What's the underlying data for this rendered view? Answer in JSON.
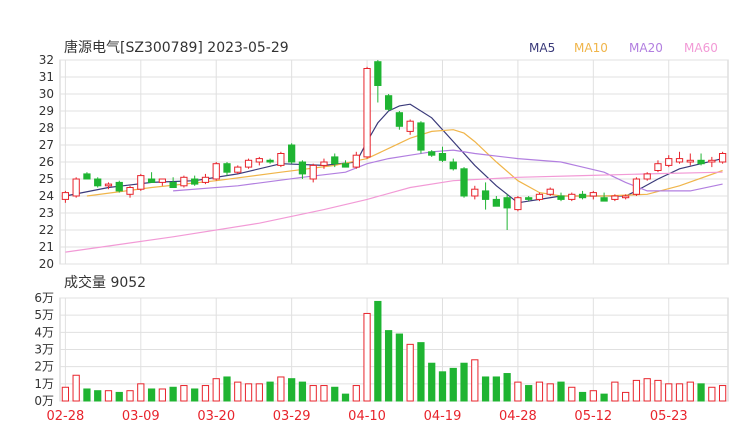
{
  "header": {
    "title": "唐源电气[SZ300789] 2023-05-29",
    "legend": [
      {
        "name": "MA5",
        "color": "#3a3a7a"
      },
      {
        "name": "MA10",
        "color": "#f0b54a"
      },
      {
        "name": "MA20",
        "color": "#b27fe0"
      },
      {
        "name": "MA60",
        "color": "#f29ad6"
      }
    ]
  },
  "colors": {
    "up": "#e8242c",
    "down": "#1fb432",
    "grid": "#e0e0e0"
  },
  "chart_data": [
    {
      "type": "candlestick",
      "title": "唐源电气[SZ300789] 2023-05-29",
      "ylim": [
        20,
        32
      ],
      "yticks": [
        "20",
        "21",
        "22",
        "23",
        "24",
        "25",
        "26",
        "27",
        "28",
        "29",
        "30",
        "31",
        "32"
      ],
      "x_labels": [
        {
          "label": "02-28",
          "index": 0
        },
        {
          "label": "03-09",
          "index": 7
        },
        {
          "label": "03-20",
          "index": 14
        },
        {
          "label": "03-29",
          "index": 21
        },
        {
          "label": "04-10",
          "index": 28
        },
        {
          "label": "04-19",
          "index": 35
        },
        {
          "label": "04-28",
          "index": 42
        },
        {
          "label": "05-12",
          "index": 49
        },
        {
          "label": "05-23",
          "index": 56
        }
      ],
      "ohlc": [
        [
          23.8,
          24.3,
          23.6,
          24.2
        ],
        [
          24.0,
          25.1,
          23.9,
          25.0
        ],
        [
          25.3,
          25.4,
          25.0,
          25.0
        ],
        [
          25.0,
          25.1,
          24.5,
          24.6
        ],
        [
          24.6,
          24.8,
          24.4,
          24.7
        ],
        [
          24.8,
          24.9,
          24.2,
          24.3
        ],
        [
          24.1,
          24.6,
          23.9,
          24.5
        ],
        [
          24.4,
          25.3,
          24.3,
          25.2
        ],
        [
          25.0,
          25.4,
          24.8,
          24.8
        ],
        [
          24.8,
          25.0,
          24.6,
          25.0
        ],
        [
          24.8,
          25.1,
          24.5,
          24.5
        ],
        [
          24.6,
          25.2,
          24.5,
          25.1
        ],
        [
          25.0,
          25.2,
          24.6,
          24.7
        ],
        [
          24.8,
          25.3,
          24.7,
          25.1
        ],
        [
          25.0,
          26.0,
          24.9,
          25.9
        ],
        [
          25.9,
          26.0,
          25.2,
          25.4
        ],
        [
          25.4,
          25.8,
          25.3,
          25.7
        ],
        [
          25.7,
          26.2,
          25.6,
          26.1
        ],
        [
          26.0,
          26.3,
          25.8,
          26.2
        ],
        [
          26.1,
          26.2,
          25.9,
          26.0
        ],
        [
          25.8,
          26.6,
          25.7,
          26.5
        ],
        [
          27.0,
          27.1,
          25.9,
          26.0
        ],
        [
          26.0,
          26.1,
          25.0,
          25.3
        ],
        [
          25.0,
          25.9,
          24.8,
          25.8
        ],
        [
          25.8,
          26.2,
          25.6,
          26.0
        ],
        [
          26.3,
          26.5,
          25.7,
          25.9
        ],
        [
          25.9,
          26.1,
          25.7,
          25.7
        ],
        [
          25.7,
          26.6,
          25.6,
          26.4
        ],
        [
          26.3,
          31.6,
          26.2,
          31.5
        ],
        [
          31.9,
          32.0,
          29.5,
          30.5
        ],
        [
          29.9,
          30.0,
          29.0,
          29.1
        ],
        [
          28.9,
          29.0,
          27.9,
          28.1
        ],
        [
          27.8,
          28.5,
          27.6,
          28.4
        ],
        [
          28.3,
          28.4,
          26.5,
          26.7
        ],
        [
          26.6,
          26.7,
          26.3,
          26.4
        ],
        [
          26.5,
          26.9,
          26.0,
          26.1
        ],
        [
          26.0,
          26.2,
          25.5,
          25.6
        ],
        [
          25.6,
          25.7,
          23.9,
          24.0
        ],
        [
          24.0,
          24.6,
          23.8,
          24.4
        ],
        [
          24.3,
          24.8,
          23.2,
          23.8
        ],
        [
          23.8,
          24.0,
          23.4,
          23.4
        ],
        [
          23.9,
          24.1,
          22.0,
          23.3
        ],
        [
          23.2,
          24.0,
          23.1,
          23.9
        ],
        [
          23.9,
          24.0,
          23.7,
          23.8
        ],
        [
          23.8,
          24.2,
          23.7,
          24.1
        ],
        [
          24.1,
          24.5,
          24.0,
          24.4
        ],
        [
          24.0,
          24.2,
          23.7,
          23.8
        ],
        [
          23.8,
          24.2,
          23.7,
          24.1
        ],
        [
          24.1,
          24.3,
          23.8,
          23.9
        ],
        [
          24.0,
          24.3,
          23.8,
          24.2
        ],
        [
          23.9,
          24.2,
          23.7,
          23.7
        ],
        [
          23.8,
          24.1,
          23.7,
          24.0
        ],
        [
          23.9,
          24.1,
          23.8,
          24.0
        ],
        [
          24.1,
          25.1,
          24.0,
          25.0
        ],
        [
          25.0,
          25.4,
          24.9,
          25.3
        ],
        [
          25.5,
          26.1,
          25.4,
          25.9
        ],
        [
          25.8,
          26.4,
          25.7,
          26.2
        ],
        [
          26.0,
          26.6,
          25.9,
          26.2
        ],
        [
          26.0,
          26.5,
          25.8,
          26.1
        ],
        [
          26.1,
          26.5,
          25.8,
          25.9
        ],
        [
          26.0,
          26.3,
          25.7,
          26.1
        ],
        [
          26.0,
          26.6,
          25.9,
          26.5
        ]
      ],
      "ma": [
        {
          "name": "MA5",
          "points": [
            [
              0,
              24.0
            ],
            [
              4,
              24.5
            ],
            [
              8,
              24.8
            ],
            [
              12,
              24.9
            ],
            [
              16,
              25.3
            ],
            [
              20,
              25.9
            ],
            [
              24,
              25.8
            ],
            [
              27,
              26.0
            ],
            [
              28,
              27.2
            ],
            [
              29,
              28.3
            ],
            [
              30,
              29.0
            ],
            [
              31,
              29.3
            ],
            [
              32,
              29.4
            ],
            [
              34,
              28.6
            ],
            [
              36,
              27.2
            ],
            [
              38,
              25.8
            ],
            [
              40,
              24.6
            ],
            [
              42,
              23.6
            ],
            [
              44,
              23.8
            ],
            [
              46,
              24.0
            ],
            [
              48,
              24.0
            ],
            [
              50,
              24.0
            ],
            [
              52,
              24.0
            ],
            [
              53,
              24.3
            ],
            [
              55,
              25.0
            ],
            [
              57,
              25.6
            ],
            [
              61,
              26.2
            ]
          ]
        },
        {
          "name": "MA10",
          "points": [
            [
              2,
              24.0
            ],
            [
              8,
              24.5
            ],
            [
              14,
              24.9
            ],
            [
              20,
              25.4
            ],
            [
              25,
              25.8
            ],
            [
              28,
              26.2
            ],
            [
              30,
              26.8
            ],
            [
              32,
              27.4
            ],
            [
              34,
              27.8
            ],
            [
              36,
              27.9
            ],
            [
              37,
              27.7
            ],
            [
              38,
              27.2
            ],
            [
              40,
              26.0
            ],
            [
              42,
              24.9
            ],
            [
              44,
              24.2
            ],
            [
              46,
              24.0
            ],
            [
              50,
              24.0
            ],
            [
              54,
              24.1
            ],
            [
              57,
              24.6
            ],
            [
              61,
              25.5
            ]
          ]
        },
        {
          "name": "MA20",
          "points": [
            [
              10,
              24.3
            ],
            [
              16,
              24.6
            ],
            [
              22,
              25.1
            ],
            [
              26,
              25.4
            ],
            [
              28,
              25.9
            ],
            [
              30,
              26.2
            ],
            [
              32,
              26.4
            ],
            [
              34,
              26.6
            ],
            [
              36,
              26.7
            ],
            [
              38,
              26.5
            ],
            [
              42,
              26.2
            ],
            [
              46,
              26.0
            ],
            [
              48,
              25.7
            ],
            [
              50,
              25.4
            ],
            [
              52,
              24.8
            ],
            [
              54,
              24.3
            ],
            [
              58,
              24.3
            ],
            [
              61,
              24.7
            ]
          ]
        },
        {
          "name": "MA60",
          "points": [
            [
              0,
              20.7
            ],
            [
              10,
              21.6
            ],
            [
              18,
              22.4
            ],
            [
              24,
              23.2
            ],
            [
              28,
              23.8
            ],
            [
              32,
              24.5
            ],
            [
              36,
              24.9
            ],
            [
              42,
              25.1
            ],
            [
              48,
              25.2
            ],
            [
              54,
              25.3
            ],
            [
              61,
              25.4
            ]
          ]
        }
      ]
    },
    {
      "type": "bar",
      "title": "成交量 9052",
      "ylim": [
        0,
        6
      ],
      "yticks": [
        "0万",
        "1万",
        "2万",
        "3万",
        "4万",
        "5万",
        "6万"
      ],
      "volumes": [
        0.8,
        1.5,
        0.7,
        0.6,
        0.6,
        0.5,
        0.6,
        1.0,
        0.7,
        0.7,
        0.8,
        0.9,
        0.7,
        0.9,
        1.3,
        1.4,
        1.1,
        1.0,
        1.0,
        1.1,
        1.4,
        1.3,
        1.1,
        0.9,
        0.9,
        0.8,
        0.4,
        0.9,
        5.1,
        5.8,
        4.1,
        3.9,
        3.3,
        3.4,
        2.2,
        1.7,
        1.9,
        2.2,
        2.4,
        1.4,
        1.4,
        1.6,
        1.1,
        0.9,
        1.1,
        1.0,
        1.1,
        0.8,
        0.5,
        0.6,
        0.4,
        1.1,
        0.5,
        1.2,
        1.3,
        1.2,
        1.0,
        1.0,
        1.1,
        1.0,
        0.8,
        0.9
      ]
    }
  ]
}
